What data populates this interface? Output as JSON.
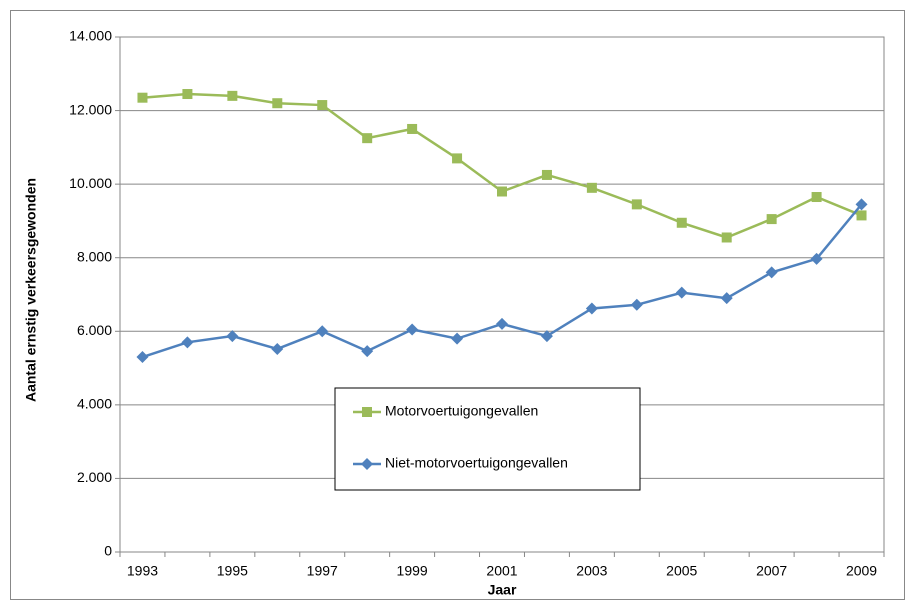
{
  "chart_data": {
    "type": "line",
    "x_label": "Jaar",
    "y_label": "Aantal ernstig verkeersgewonden",
    "categories": [
      "1993",
      null,
      "1995",
      null,
      "1997",
      null,
      "1999",
      null,
      "2001",
      null,
      "2003",
      null,
      "2005",
      null,
      "2007",
      null,
      "2009"
    ],
    "series": [
      {
        "name": "Motorvoertuigongevallen",
        "color": "#9bbb59",
        "marker": "square",
        "values": [
          12350,
          12450,
          12400,
          12200,
          12150,
          11250,
          11500,
          10700,
          9800,
          10250,
          9900,
          9450,
          8950,
          8550,
          9050,
          9650,
          9150
        ]
      },
      {
        "name": "Niet-motorvoertuigongevallen",
        "color": "#4f81bd",
        "marker": "diamond",
        "values": [
          5300,
          5700,
          5870,
          5520,
          6000,
          5460,
          6050,
          5800,
          6200,
          5870,
          6620,
          6720,
          7050,
          6900,
          7600,
          7970,
          9450
        ]
      }
    ],
    "ylim": [
      0,
      14000
    ],
    "yticks": [
      0,
      {
        "value": 2000,
        "label": "2.000"
      },
      {
        "value": 4000,
        "label": "4.000"
      },
      {
        "value": 6000,
        "label": "6.000"
      },
      {
        "value": 8000,
        "label": "8.000"
      },
      {
        "value": 10000,
        "label": "10.000"
      },
      {
        "value": 12000,
        "label": "12.000"
      },
      {
        "value": 14000,
        "label": "14.000"
      }
    ],
    "grid": true
  }
}
